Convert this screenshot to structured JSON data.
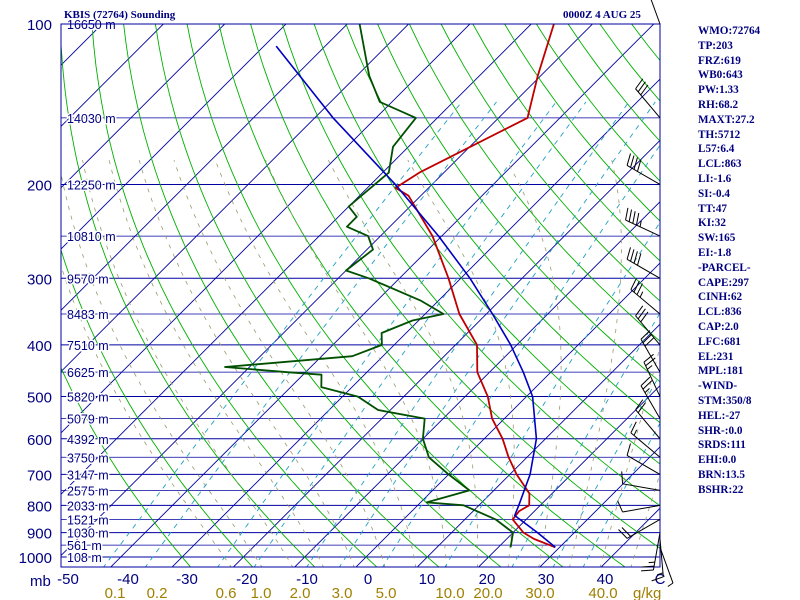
{
  "header": {
    "station": "KBIS (72764) Sounding",
    "time": "0000Z  4 AUG 25"
  },
  "stats": [
    "WMO:72764",
    "TP:203",
    "FRZ:619",
    "WB0:643",
    "PW:1.33",
    "RH:68.2",
    "MAXT:27.2",
    "TH:5712",
    "L57:6.4",
    "LCL:863",
    "LI:-1.6",
    "SI:-0.4",
    "TT:47",
    "KI:32",
    "SW:165",
    "EI:-1.8",
    "-PARCEL-",
    "CAPE:297",
    "CINH:62",
    "LCL:836",
    "CAP:2.0",
    "LFC:681",
    "EL:231",
    "MPL:181",
    "-WIND-",
    "STM:350/8",
    "HEL:-27",
    "SHR-:0.0",
    "SRDS:111",
    "EHI:0.0",
    "BRN:13.5",
    "BSHR:22"
  ],
  "colors": {
    "isobar": "#0000a0",
    "isotherm": "#0000a0",
    "dry_adiabat": "#00b000",
    "moist_adiabat": "#9a9a70",
    "mixing_ratio": "#20a0c0",
    "temperature": "#c00000",
    "dewpoint": "#005000",
    "parcel": "#0000c0",
    "label_blue": "#000080",
    "label_mixing": "#a08000"
  },
  "chart_data": {
    "type": "line",
    "title": "KBIS (72764) Sounding",
    "pressure_axis": {
      "ticks": [
        100,
        200,
        300,
        400,
        500,
        600,
        700,
        800,
        900,
        1000
      ],
      "unit_label": "mb",
      "scale": "log",
      "range": [
        100,
        1050
      ]
    },
    "temperature_axis": {
      "ticks": [
        -50,
        -40,
        -30,
        -20,
        -10,
        0,
        10,
        20,
        30,
        40
      ],
      "tick_labels": [
        "-50",
        "-40",
        "-30",
        "-20",
        "-10",
        "0",
        "10",
        "20",
        "30",
        "40",
        "C"
      ],
      "unit_label": "C",
      "skew": true
    },
    "mixing_ratio_labels": [
      "0.1",
      "0.2",
      "0.6",
      "1.0",
      "2.0",
      "3.0",
      "5.0",
      "10.0",
      "20.0",
      "30.0",
      "40.0"
    ],
    "mixing_ratio_values": [
      0.1,
      0.2,
      0.6,
      1.0,
      2.0,
      3.0,
      5.0,
      10.0,
      20.0,
      30.0,
      40.0
    ],
    "mixing_ratio_unit": "g/kg",
    "height_labels": [
      {
        "p": 100,
        "label": "16650 m"
      },
      {
        "p": 150,
        "label": "14030 m"
      },
      {
        "p": 200,
        "label": "12250 m"
      },
      {
        "p": 250,
        "label": "10810 m"
      },
      {
        "p": 300,
        "label": "9570 m"
      },
      {
        "p": 350,
        "label": "8483 m"
      },
      {
        "p": 400,
        "label": "7510 m"
      },
      {
        "p": 450,
        "label": "6625 m"
      },
      {
        "p": 500,
        "label": "5820 m"
      },
      {
        "p": 550,
        "label": "5079 m"
      },
      {
        "p": 600,
        "label": "4392 m"
      },
      {
        "p": 650,
        "label": "3750 m"
      },
      {
        "p": 700,
        "label": "3147 m"
      },
      {
        "p": 750,
        "label": "2575 m"
      },
      {
        "p": 800,
        "label": "2033 m"
      },
      {
        "p": 850,
        "label": "1521 m"
      },
      {
        "p": 900,
        "label": "1030 m"
      },
      {
        "p": 950,
        "label": "561 m"
      },
      {
        "p": 1000,
        "label": "108 m"
      }
    ],
    "series": [
      {
        "key": "temperature",
        "points": [
          [
            959,
            29.3
          ],
          [
            925,
            24.5
          ],
          [
            900,
            21.7
          ],
          [
            850,
            17.8
          ],
          [
            820,
            17.5
          ],
          [
            800,
            18.2
          ],
          [
            760,
            16.3
          ],
          [
            700,
            11.1
          ],
          [
            650,
            7.0
          ],
          [
            600,
            3.0
          ],
          [
            550,
            -2.0
          ],
          [
            500,
            -6.3
          ],
          [
            450,
            -12.0
          ],
          [
            400,
            -16.5
          ],
          [
            350,
            -24.4
          ],
          [
            300,
            -32.0
          ],
          [
            250,
            -41.5
          ],
          [
            210,
            -52.0
          ],
          [
            203,
            -55.4
          ],
          [
            190,
            -54.0
          ],
          [
            150,
            -45.3
          ],
          [
            125,
            -50.5
          ],
          [
            100,
            -56.3
          ]
        ]
      },
      {
        "key": "dewpoint",
        "points": [
          [
            959,
            22.0
          ],
          [
            900,
            20.0
          ],
          [
            850,
            15.0
          ],
          [
            800,
            7.5
          ],
          [
            790,
            1.0
          ],
          [
            750,
            6.0
          ],
          [
            700,
            0.0
          ],
          [
            650,
            -6.0
          ],
          [
            600,
            -10.0
          ],
          [
            550,
            -13.0
          ],
          [
            530,
            -22.0
          ],
          [
            500,
            -27.5
          ],
          [
            480,
            -35.0
          ],
          [
            455,
            -37.0
          ],
          [
            450,
            -43.0
          ],
          [
            440,
            -54.0
          ],
          [
            420,
            -35.0
          ],
          [
            400,
            -32.0
          ],
          [
            380,
            -34.0
          ],
          [
            360,
            -31.0
          ],
          [
            350,
            -27.0
          ],
          [
            330,
            -33.0
          ],
          [
            300,
            -45.0
          ],
          [
            290,
            -50.0
          ],
          [
            265,
            -49.0
          ],
          [
            250,
            -52.0
          ],
          [
            240,
            -57.0
          ],
          [
            230,
            -57.0
          ],
          [
            220,
            -60.0
          ],
          [
            190,
            -59.0
          ],
          [
            170,
            -62.5
          ],
          [
            150,
            -63.5
          ],
          [
            140,
            -72.0
          ],
          [
            125,
            -78.0
          ],
          [
            100,
            -88.0
          ]
        ]
      },
      {
        "key": "parcel",
        "points": [
          [
            959,
            29.3
          ],
          [
            900,
            24.0
          ],
          [
            836,
            17.5
          ],
          [
            800,
            16.5
          ],
          [
            700,
            13.3
          ],
          [
            600,
            8.5
          ],
          [
            500,
            1.0
          ],
          [
            450,
            -4.5
          ],
          [
            400,
            -11.0
          ],
          [
            350,
            -19.0
          ],
          [
            300,
            -28.5
          ],
          [
            250,
            -40.5
          ],
          [
            200,
            -56.0
          ],
          [
            150,
            -77.0
          ],
          [
            110,
            -98.0
          ]
        ]
      }
    ],
    "wind_barbs": [
      {
        "p": 959,
        "dir": 160,
        "spd": 5
      },
      {
        "p": 925,
        "dir": 175,
        "spd": 15
      },
      {
        "p": 900,
        "dir": 190,
        "spd": 25
      },
      {
        "p": 850,
        "dir": 240,
        "spd": 20
      },
      {
        "p": 800,
        "dir": 260,
        "spd": 10
      },
      {
        "p": 750,
        "dir": 280,
        "spd": 10
      },
      {
        "p": 700,
        "dir": 300,
        "spd": 10
      },
      {
        "p": 650,
        "dir": 310,
        "spd": 15
      },
      {
        "p": 600,
        "dir": 320,
        "spd": 20
      },
      {
        "p": 550,
        "dir": 330,
        "spd": 25
      },
      {
        "p": 500,
        "dir": 335,
        "spd": 25
      },
      {
        "p": 450,
        "dir": 330,
        "spd": 30
      },
      {
        "p": 400,
        "dir": 320,
        "spd": 30
      },
      {
        "p": 350,
        "dir": 310,
        "spd": 35
      },
      {
        "p": 300,
        "dir": 300,
        "spd": 40
      },
      {
        "p": 250,
        "dir": 295,
        "spd": 45
      },
      {
        "p": 200,
        "dir": 300,
        "spd": 40
      },
      {
        "p": 150,
        "dir": 320,
        "spd": 30
      },
      {
        "p": 100,
        "dir": 340,
        "spd": 20
      }
    ]
  }
}
